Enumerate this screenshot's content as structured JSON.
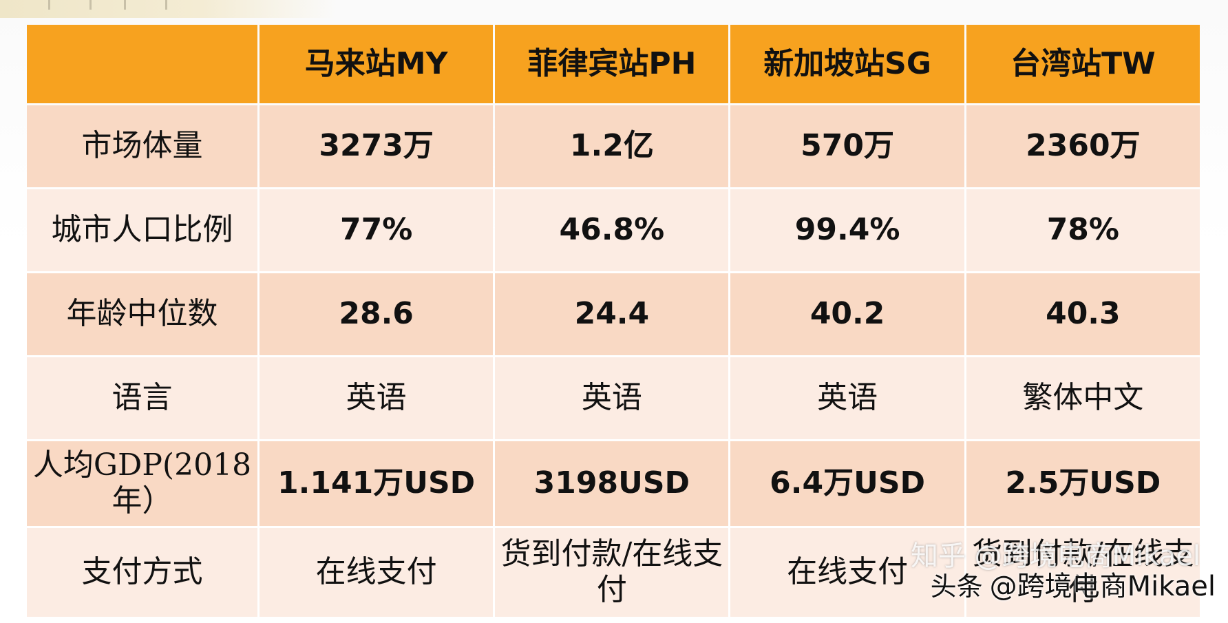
{
  "header": {
    "columns": [
      "",
      "马来站MY",
      "菲律宾站PH",
      "新加坡站SG",
      "台湾站TW"
    ]
  },
  "rows": [
    {
      "label": "市场体量",
      "cells": [
        "3273万",
        "1.2亿",
        "570万",
        "2360万"
      ],
      "highlight_index": 1
    },
    {
      "label": "城市人口比例",
      "cells": [
        "77%",
        "46.8%",
        "99.4%",
        "78%"
      ],
      "highlight_index": 2
    },
    {
      "label": "年龄中位数",
      "cells": [
        "28.6",
        "24.4",
        "40.2",
        "40.3"
      ],
      "highlight_index": 1
    },
    {
      "label": "语言",
      "cells": [
        "英语",
        "英语",
        "英语",
        "繁体中文"
      ],
      "highlight_index": null
    },
    {
      "label": "人均GDP(2018年）",
      "cells": [
        "1.141万USD",
        "3198USD",
        "6.4万USD",
        "2.5万USD"
      ],
      "highlight_index": 2
    },
    {
      "label": "支付方式",
      "cells": [
        "在线支付",
        "货到付款/在线支付",
        "在线支付",
        "货到付款/在线支付"
      ],
      "highlight_index": null
    }
  ],
  "watermarks": {
    "primary_platform": "头条",
    "primary_author": "@跨境电商Mikael",
    "secondary": "知乎 @跨境电商Mikael"
  },
  "colors": {
    "header_bg": "#f7a21f",
    "header_text": "#ffffff",
    "row_odd_bg": "#f9d9c4",
    "row_even_bg": "#fcece3",
    "highlight_text": "#e8231b",
    "body_text": "#111111"
  }
}
